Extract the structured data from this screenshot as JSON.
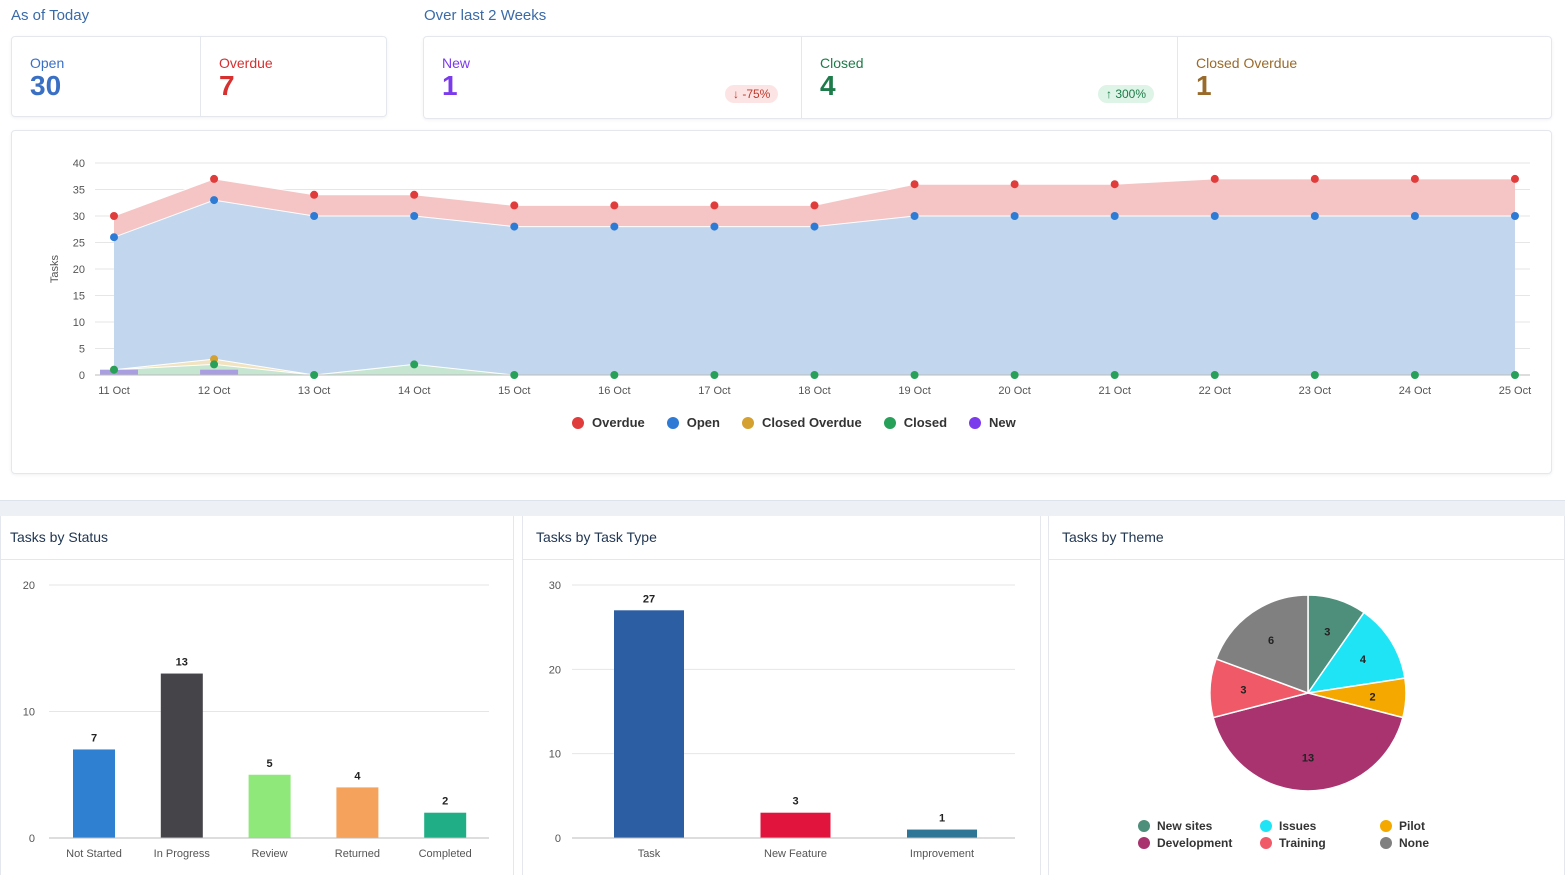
{
  "summary": {
    "today_label": "As of Today",
    "weeks_label": "Over last 2 Weeks",
    "open": {
      "label": "Open",
      "value": "30",
      "color": "#3a70c4"
    },
    "overdue": {
      "label": "Overdue",
      "value": "7",
      "color": "#d63031"
    },
    "new": {
      "label": "New",
      "value": "1",
      "color": "#7c3aed",
      "badge": "↓ -75%"
    },
    "closed": {
      "label": "Closed",
      "value": "4",
      "color": "#1e7b4a",
      "badge": "↑ 300%"
    },
    "closed_overdue": {
      "label": "Closed Overdue",
      "value": "1",
      "color": "#9a6a2a"
    }
  },
  "chart_data": [
    {
      "type": "area",
      "ylabel": "Tasks",
      "ylim": [
        0,
        40
      ],
      "yticks": [
        0,
        5,
        10,
        15,
        20,
        25,
        30,
        35,
        40
      ],
      "categories": [
        "11 Oct",
        "12 Oct",
        "13 Oct",
        "14 Oct",
        "15 Oct",
        "16 Oct",
        "17 Oct",
        "18 Oct",
        "19 Oct",
        "20 Oct",
        "21 Oct",
        "22 Oct",
        "23 Oct",
        "24 Oct",
        "25 Oct"
      ],
      "legend_position": "bottom",
      "series": [
        {
          "name": "Overdue",
          "color": "#e03c3c",
          "fill": "#f5c4c4",
          "values": [
            30,
            37,
            34,
            34,
            32,
            32,
            32,
            32,
            36,
            36,
            36,
            37,
            37,
            37,
            37
          ]
        },
        {
          "name": "Open",
          "color": "#2e7bd6",
          "fill": "#c2d7ee",
          "values": [
            26,
            33,
            30,
            30,
            28,
            28,
            28,
            28,
            30,
            30,
            30,
            30,
            30,
            30,
            30
          ]
        },
        {
          "name": "Closed Overdue",
          "color": "#d4a030",
          "fill": "#f1e3bf",
          "values": [
            1,
            3,
            0,
            0,
            0,
            0,
            0,
            0,
            0,
            0,
            0,
            0,
            0,
            0,
            0
          ]
        },
        {
          "name": "Closed",
          "color": "#27a05a",
          "fill": "#c6e6d1",
          "values": [
            1,
            2,
            0,
            2,
            0,
            0,
            0,
            0,
            0,
            0,
            0,
            0,
            0,
            0,
            0
          ]
        },
        {
          "name": "New",
          "color": "#7c3aed",
          "fill": "#a99ee0",
          "values": [
            1,
            1,
            0,
            0,
            0,
            0,
            0,
            0,
            0,
            0,
            0,
            0,
            0,
            0,
            0
          ]
        }
      ]
    },
    {
      "type": "bar",
      "title": "Tasks by Status",
      "ylim": [
        0,
        20
      ],
      "yticks": [
        0,
        10,
        20
      ],
      "categories": [
        "Not Started",
        "In Progress",
        "Review",
        "Returned",
        "Completed"
      ],
      "values": [
        7,
        13,
        5,
        4,
        2
      ],
      "colors": [
        "#2f80d1",
        "#444449",
        "#8ee87a",
        "#f5a25d",
        "#1fae85"
      ]
    },
    {
      "type": "bar",
      "title": "Tasks by Task Type",
      "ylim": [
        0,
        30
      ],
      "yticks": [
        0,
        10,
        20,
        30
      ],
      "categories": [
        "Task",
        "New Feature",
        "Improvement"
      ],
      "values": [
        27,
        3,
        1
      ],
      "colors": [
        "#2c5ea3",
        "#e0143c",
        "#2f7595"
      ]
    },
    {
      "type": "pie",
      "title": "Tasks by Theme",
      "legend_position": "bottom",
      "slices": [
        {
          "name": "New sites",
          "value": 3,
          "color": "#4d8f7a"
        },
        {
          "name": "Issues",
          "value": 4,
          "color": "#1fe4f5"
        },
        {
          "name": "Pilot",
          "value": 2,
          "color": "#f5a800"
        },
        {
          "name": "Development",
          "value": 13,
          "color": "#a8336f"
        },
        {
          "name": "Training",
          "value": 3,
          "color": "#f05a68"
        },
        {
          "name": "None",
          "value": 6,
          "color": "#808080"
        }
      ]
    }
  ]
}
